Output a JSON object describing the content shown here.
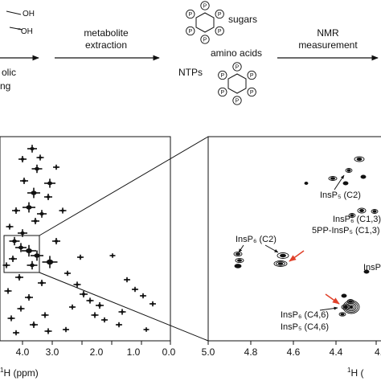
{
  "workflow": {
    "left_partial_top": "OH",
    "left_partial_bottom": "''OH",
    "left_partial_label_line1": "olic",
    "left_partial_label_line2": "ng",
    "step1_line1": "metabolite",
    "step1_line2": "extraction",
    "sugars": "sugars",
    "amino_acids": "amino acids",
    "ntps": "NTPs",
    "step2_line1": "NMR",
    "step2_line2": "measurement",
    "phosphate_symbol": "P"
  },
  "left_spectrum": {
    "x_ticks": [
      "4.0",
      "3.0",
      "2.0",
      "1.0",
      "0.0"
    ],
    "x_axis_label_partial": "H (ppm)",
    "x_axis_label_prefix": "1"
  },
  "right_spectrum": {
    "x_ticks": [
      "5.0",
      "4.8",
      "4.6",
      "4.4",
      "4."
    ],
    "x_axis_label_prefix": "1",
    "x_axis_label_partial": "H (",
    "annotations": {
      "insp5_c2": "InsP₅ (C2)",
      "insp6_c13": "InsP₆ (C1,3)",
      "pp_insp5_c13": "5PP-InsP₅ (C1,3)",
      "insp6_c2": "InsP₆ (C2)",
      "insp_partial": "InsP",
      "insp6_c46": "InsP₆ (C4,6)",
      "insp5_c46": "InsP₅ (C4,6)"
    }
  },
  "colors": {
    "ink": "#111111",
    "arrow_red": "#e0412a"
  }
}
